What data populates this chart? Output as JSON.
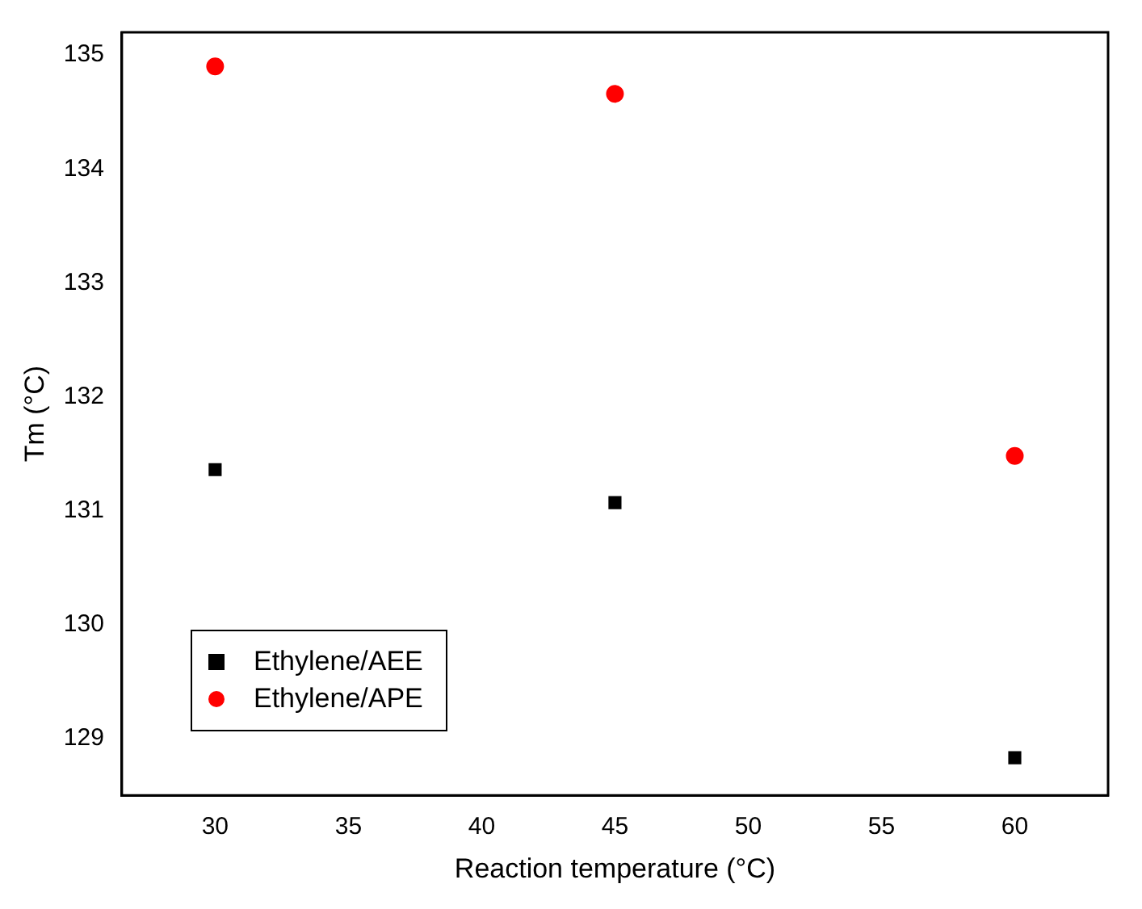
{
  "chart_data": {
    "type": "scatter",
    "xlabel": "Reaction temperature (°C)",
    "ylabel": "Tm (°C)",
    "x": [
      30,
      45,
      60
    ],
    "series": [
      {
        "name": "Ethylene/AEE",
        "color": "#000000",
        "marker": "square",
        "values": [
          131.36,
          131.07,
          128.83
        ]
      },
      {
        "name": "Ethylene/APE",
        "color": "#ff0000",
        "marker": "circle",
        "values": [
          134.9,
          134.66,
          131.48
        ]
      }
    ],
    "xlim": [
      26.5,
      63.5
    ],
    "xticks": [
      30,
      35,
      40,
      45,
      50,
      55,
      60
    ],
    "ylim": [
      128.5,
      135.2
    ],
    "yticks": [
      129,
      130,
      131,
      132,
      133,
      134,
      135
    ],
    "grid": false,
    "legend": "bottom left"
  }
}
